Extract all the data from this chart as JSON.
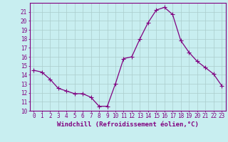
{
  "x": [
    0,
    1,
    2,
    3,
    4,
    5,
    6,
    7,
    8,
    9,
    10,
    11,
    12,
    13,
    14,
    15,
    16,
    17,
    18,
    19,
    20,
    21,
    22,
    23
  ],
  "y": [
    14.5,
    14.3,
    13.5,
    12.5,
    12.2,
    11.9,
    11.9,
    11.5,
    10.5,
    10.5,
    13.0,
    15.8,
    16.0,
    18.0,
    19.8,
    21.2,
    21.5,
    20.7,
    17.8,
    16.5,
    15.5,
    14.8,
    14.1,
    12.8
  ],
  "line_color": "#800080",
  "marker_color": "#800080",
  "bg_color": "#c8eef0",
  "grid_color": "#aacccc",
  "axis_color": "#800080",
  "xlabel": "Windchill (Refroidissement éolien,°C)",
  "xlim": [
    -0.5,
    23.5
  ],
  "ylim": [
    10,
    22
  ],
  "yticks": [
    10,
    11,
    12,
    13,
    14,
    15,
    16,
    17,
    18,
    19,
    20,
    21
  ],
  "xticks": [
    0,
    1,
    2,
    3,
    4,
    5,
    6,
    7,
    8,
    9,
    10,
    11,
    12,
    13,
    14,
    15,
    16,
    17,
    18,
    19,
    20,
    21,
    22,
    23
  ],
  "tick_fontsize": 5.5,
  "label_fontsize": 6.5,
  "linewidth": 0.9,
  "markersize": 2.5
}
